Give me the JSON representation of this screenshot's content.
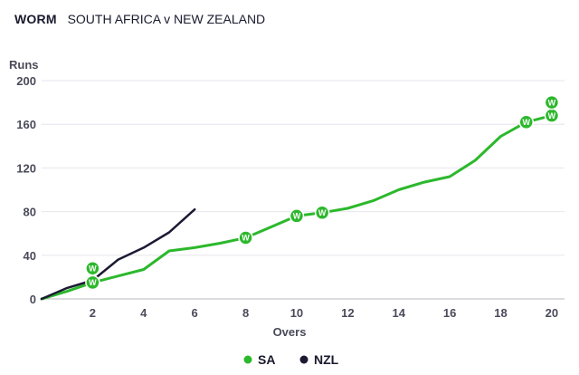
{
  "header": {
    "tag": "WORM",
    "title": "SOUTH AFRICA v NEW ZEALAND"
  },
  "chart_data": {
    "type": "line",
    "title": "WORM SOUTH AFRICA v NEW ZEALAND",
    "xlabel": "Overs",
    "ylabel": "Runs",
    "xlim": [
      0,
      20.5
    ],
    "ylim": [
      0,
      200
    ],
    "xticks": [
      2,
      4,
      6,
      8,
      10,
      12,
      14,
      16,
      18,
      20
    ],
    "yticks": [
      0,
      40,
      80,
      120,
      160,
      200
    ],
    "grid": true,
    "legend": "bottom-center",
    "wicket_label": "W",
    "series": [
      {
        "name": "SA",
        "color": "#2cb82c",
        "x": [
          0,
          1,
          2,
          3,
          4,
          5,
          6,
          7,
          8,
          9,
          10,
          11,
          12,
          13,
          14,
          15,
          16,
          17,
          18,
          19,
          20
        ],
        "values": [
          0,
          7,
          15,
          21,
          27,
          44,
          47,
          51,
          56,
          66,
          76,
          79,
          83,
          90,
          100,
          107,
          112,
          127,
          149,
          162,
          168
        ],
        "wickets": [
          {
            "over": 2,
            "runs": 15
          },
          {
            "over": 2,
            "runs": 28
          },
          {
            "over": 8,
            "runs": 56
          },
          {
            "over": 10,
            "runs": 76
          },
          {
            "over": 11,
            "runs": 79
          },
          {
            "over": 19,
            "runs": 162
          },
          {
            "over": 20,
            "runs": 168
          },
          {
            "over": 20,
            "runs": 180
          }
        ]
      },
      {
        "name": "NZL",
        "color": "#1c1a33",
        "x": [
          0,
          1,
          2,
          3,
          4,
          5,
          6
        ],
        "values": [
          0,
          10,
          17,
          36,
          47,
          61,
          82
        ],
        "wickets": []
      }
    ]
  }
}
